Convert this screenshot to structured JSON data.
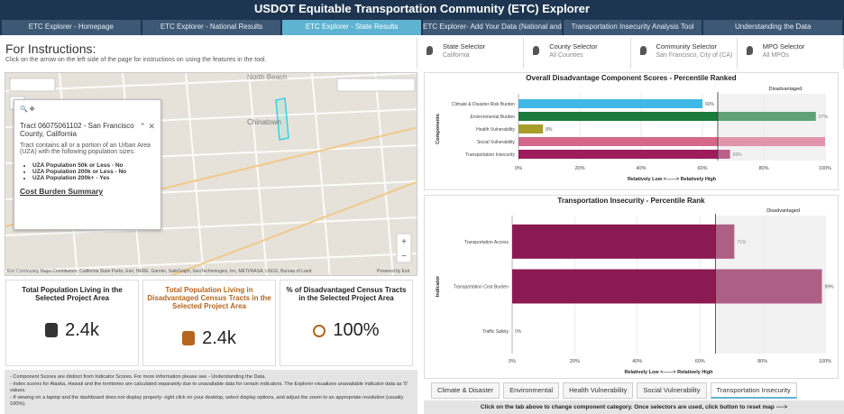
{
  "header": {
    "title": "USDOT Equitable Transportation Community (ETC) Explorer"
  },
  "tabs": {
    "items": [
      "ETC Explorer - Homepage",
      "ETC Explorer - National Results",
      "ETC Explorer - State Results",
      "ETC Explorer- Add Your Data (National and State Results)",
      "Transportation Insecurity Analysis Tool",
      "Understanding the Data"
    ],
    "active": 2
  },
  "instructions": {
    "title": "For Instructions:",
    "text": "Click on the arrow on the left side of the page for instructions on using the features in the tool."
  },
  "selectors": [
    {
      "label": "State Selector",
      "value": "California"
    },
    {
      "label": "County Selector",
      "value": "All Counties"
    },
    {
      "label": "Community Selector",
      "value": "San Francisco, City of (CA)"
    },
    {
      "label": "MPO Selector",
      "value": "All MPOs"
    }
  ],
  "map": {
    "labels": [
      "North Beach",
      "Chinatown"
    ],
    "attribution": "Esri Community Maps Contributors, California State Parks, Esri, HERE, Garmin, SafeGraph, GeoTechnologies, Inc, METI/NASA, USGS, Bureau of Land",
    "powered": "Powered by Esri",
    "popup": {
      "title": "Tract 06075061102 - San Francisco County, California",
      "text": "Tract contains all or a portion of an Urban Area (UZA) with the following population sizes:",
      "items": [
        "UZA Population 50k or Less - No",
        "UZA Population 200k or Less - No",
        "UZA Population 200k+ - Yes"
      ],
      "link": "Cost Burden Summary"
    }
  },
  "kpis": [
    {
      "title": "Total Population Living in the Selected Project Area",
      "value": "2.4k"
    },
    {
      "title": "Total Population Living in Disadvantaged Census Tracts in the Selected Project Area",
      "value": "2.4k"
    },
    {
      "title": "% of Disadvantaged Census Tracts in the Selected Project Area",
      "value": "100%"
    }
  ],
  "notes": [
    "- Component Scores are distinct from Indicator Scores. For more information please see - Understanding the Data.",
    "- Index scores for Alaska, Hawaii and the territories are calculated separately due to unavailable data for certain indicators. The Explorer visualizes unavailable indicator data as '0' values.",
    "- If viewing on a laptop and the dashboard does not display properly- right click on your desktop, select display options, and adjust the zoom to an appropriate resolution (usually 100%)."
  ],
  "chart_data": [
    {
      "type": "hbar",
      "title": "Overall Disadvantage Component Scores - Percentile Ranked",
      "xlabel": "Relatively Low <------> Relatively High",
      "ylabel": "Components",
      "threshold": 65,
      "threshold_label": "Disadvantaged",
      "categories": [
        "Climate & Disaster Risk Burden",
        "Environmental Burden",
        "Health Vulnerability",
        "Social Vulnerability",
        "Transportation Insecurity"
      ],
      "values": [
        60,
        97,
        8,
        100,
        69
      ],
      "value_labels": [
        "60%",
        "97%",
        "8%",
        null,
        "69%"
      ],
      "colors": [
        "#3fb8e6",
        "#1b7a3c",
        "#a79d2d",
        "#d5678a",
        "#9e1b5c"
      ],
      "xlim": [
        0,
        100
      ],
      "xticks": [
        {
          "value": 0,
          "label": "0%"
        },
        {
          "value": 20,
          "label": "20%"
        },
        {
          "value": 40,
          "label": "40%"
        },
        {
          "value": 60,
          "label": "60%"
        },
        {
          "value": 80,
          "label": "80%"
        },
        {
          "value": 100,
          "label": "100%"
        }
      ],
      "grid": true
    },
    {
      "type": "hbar",
      "title": "Transportation Insecurity - Percentile Rank",
      "xlabel": "Relatively Low <------> Relatively High",
      "ylabel": "Indicator",
      "threshold": 65,
      "threshold_label": "Disadvantaged",
      "categories": [
        "Transportation Access",
        "Transportation Cost Burden",
        "Traffic Safety"
      ],
      "values": [
        71,
        99,
        0
      ],
      "value_labels": [
        "71%",
        "99%",
        "0%"
      ],
      "color": "#8c1a52",
      "xlim": [
        0,
        100
      ],
      "xticks": [
        {
          "value": 0,
          "label": "0%"
        },
        {
          "value": 20,
          "label": "20%"
        },
        {
          "value": 40,
          "label": "40%"
        },
        {
          "value": 60,
          "label": "60%"
        },
        {
          "value": 80,
          "label": "80%"
        },
        {
          "value": 100,
          "label": "100%"
        }
      ],
      "grid": true
    }
  ],
  "bottom_tabs": {
    "items": [
      "Climate & Disaster",
      "Environmental",
      "Health Vulnerability",
      "Social Vulnerability",
      "Transportation Insecurity"
    ],
    "active": 4
  },
  "footer": "Click on the tab above to change component category. Once selectors are used, click button to reset map ---->"
}
